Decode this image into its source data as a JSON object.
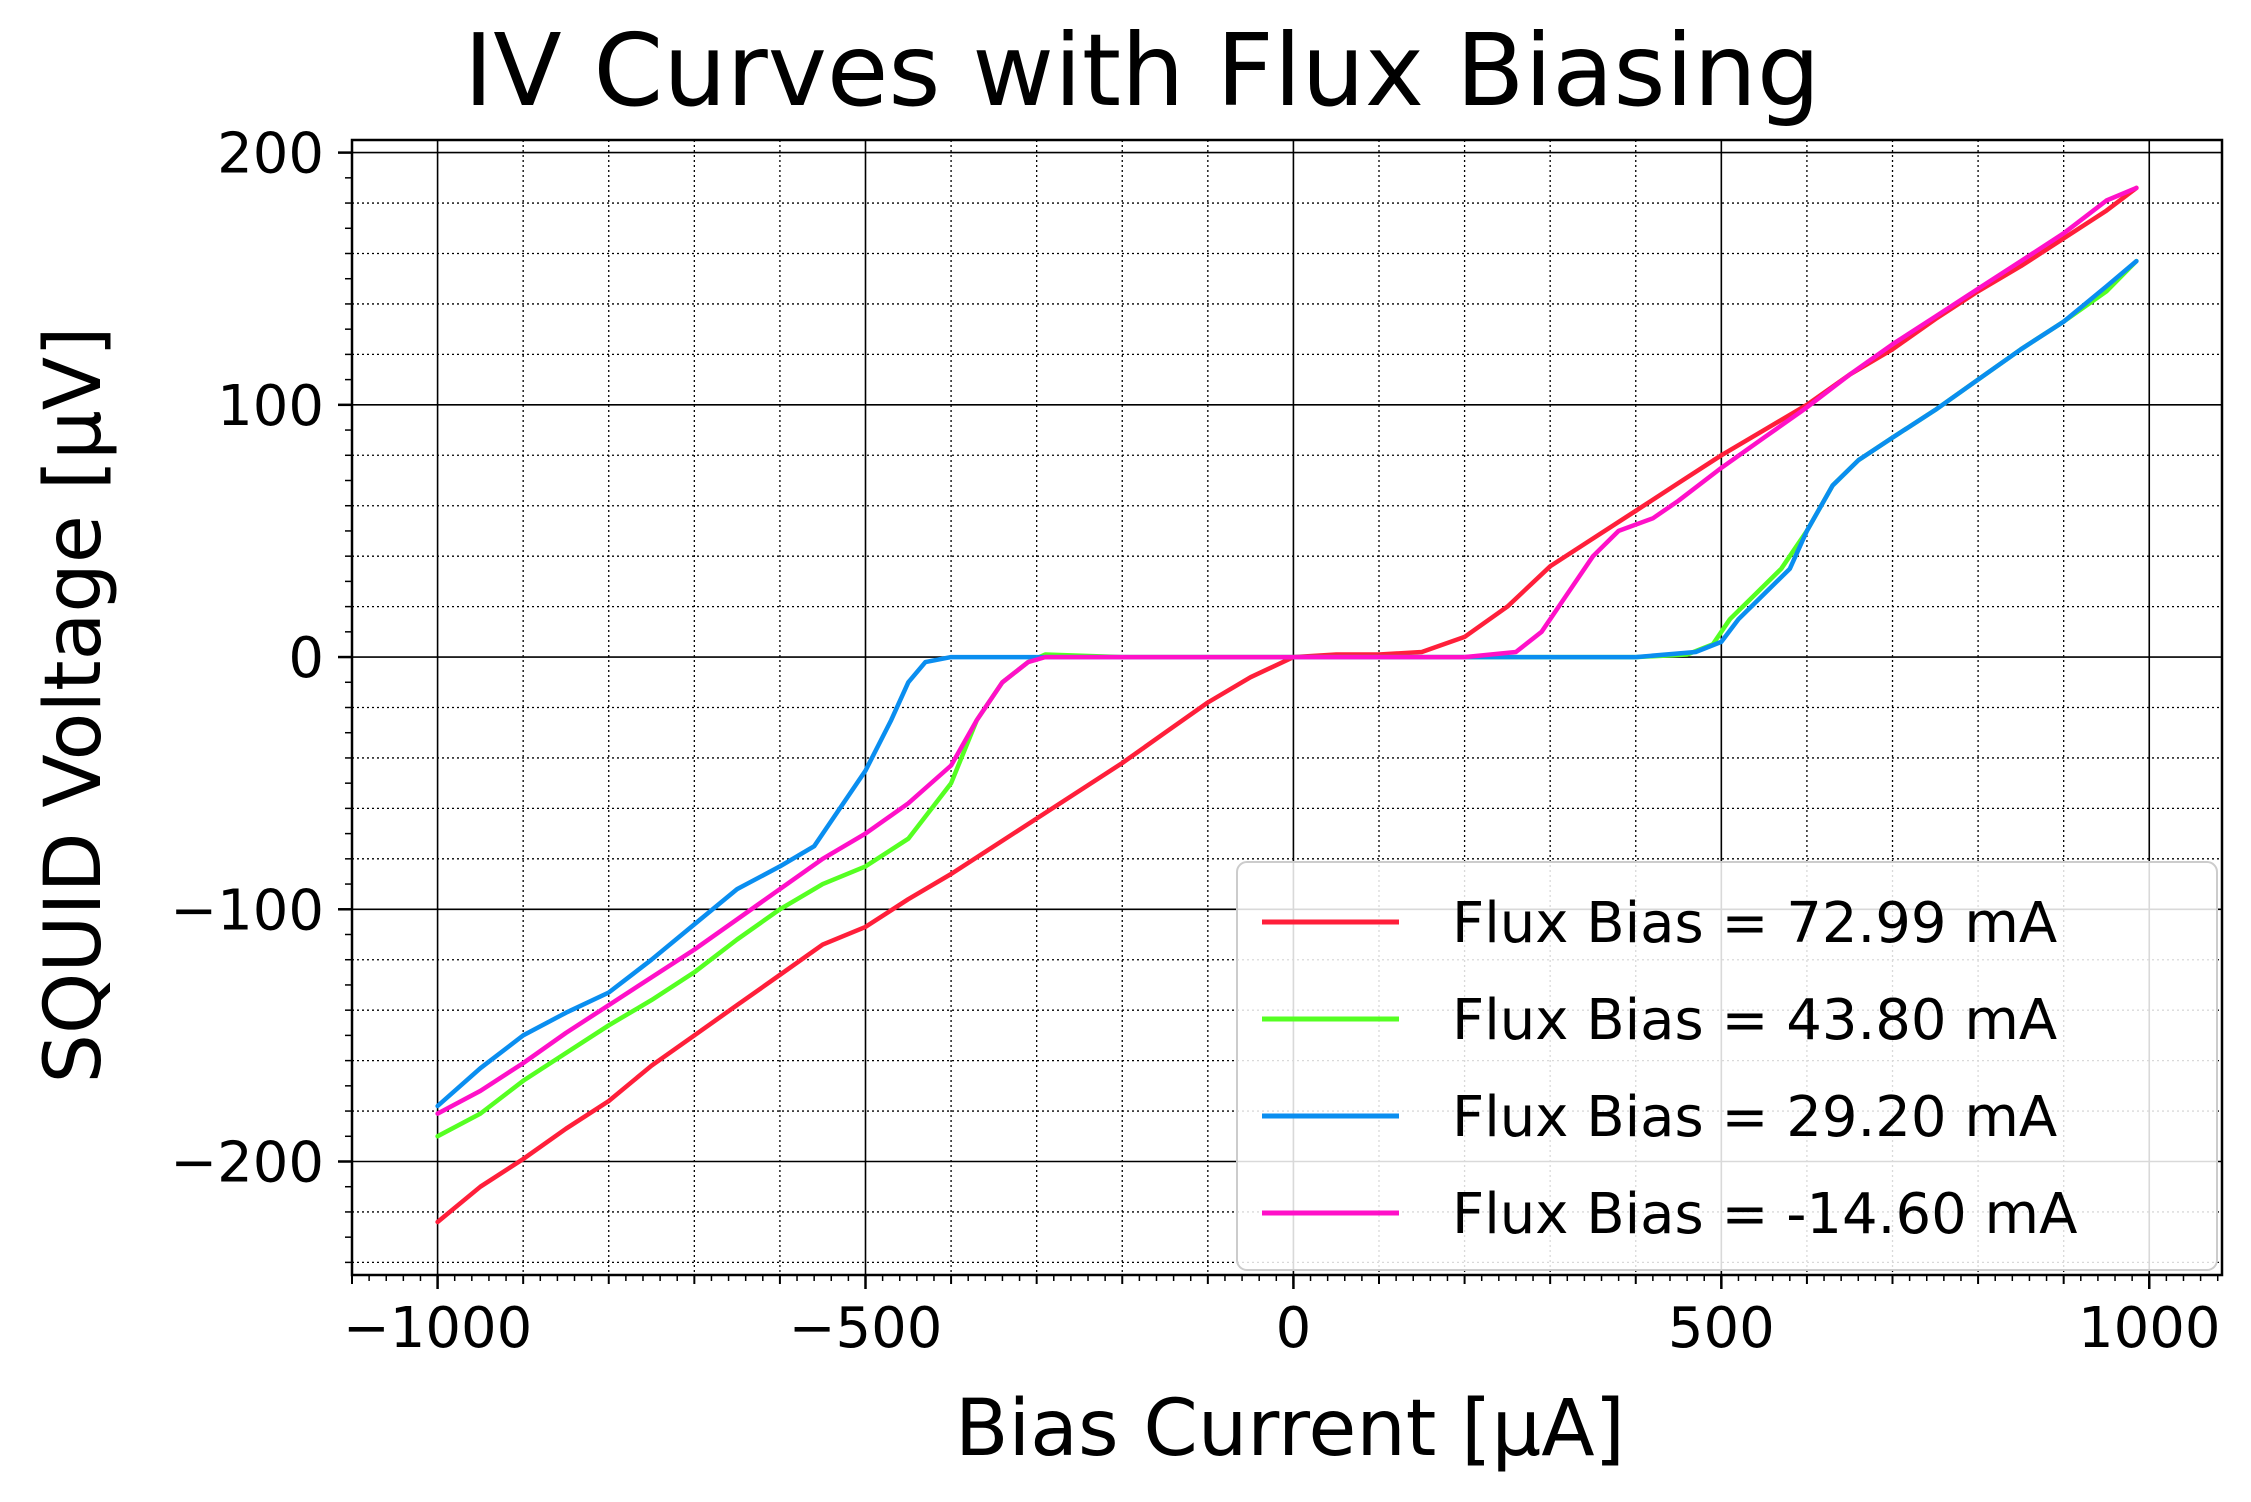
{
  "chart_data": {
    "type": "line",
    "title": "IV Curves with Flux Biasing",
    "xlabel": "Bias Current [μA]",
    "ylabel": "SQUID Voltage [μV]",
    "xlim": [
      -1100,
      1085
    ],
    "ylim": [
      -245,
      205
    ],
    "xticks": [
      -1000,
      -500,
      0,
      500,
      1000
    ],
    "xtick_labels": [
      "−1000",
      "−500",
      "0",
      "500",
      "1000"
    ],
    "yticks": [
      -200,
      -100,
      0,
      100,
      200
    ],
    "ytick_labels": [
      "−200",
      "−100",
      "0",
      "100",
      "200"
    ],
    "grid": "major solid, minor dotted",
    "legend_position": "lower-right",
    "series": [
      {
        "name": "Flux Bias = 72.99 mA",
        "color": "#ff1f3a",
        "points": [
          [
            -1000,
            -224
          ],
          [
            -950,
            -210
          ],
          [
            -900,
            -199
          ],
          [
            -850,
            -187
          ],
          [
            -800,
            -176
          ],
          [
            -750,
            -162
          ],
          [
            -700,
            -150
          ],
          [
            -650,
            -138
          ],
          [
            -600,
            -126
          ],
          [
            -550,
            -114
          ],
          [
            -500,
            -107
          ],
          [
            -450,
            -96
          ],
          [
            -400,
            -86
          ],
          [
            -350,
            -75
          ],
          [
            -300,
            -64
          ],
          [
            -250,
            -53
          ],
          [
            -200,
            -42
          ],
          [
            -150,
            -30
          ],
          [
            -100,
            -18
          ],
          [
            -50,
            -8
          ],
          [
            0,
            0
          ],
          [
            50,
            1
          ],
          [
            100,
            1
          ],
          [
            150,
            2
          ],
          [
            200,
            8
          ],
          [
            250,
            20
          ],
          [
            300,
            36
          ],
          [
            350,
            47
          ],
          [
            400,
            58
          ],
          [
            450,
            69
          ],
          [
            500,
            80
          ],
          [
            550,
            90
          ],
          [
            600,
            100
          ],
          [
            650,
            112
          ],
          [
            700,
            122
          ],
          [
            750,
            134
          ],
          [
            800,
            145
          ],
          [
            850,
            155
          ],
          [
            900,
            166
          ],
          [
            950,
            177
          ],
          [
            985,
            186
          ]
        ]
      },
      {
        "name": "Flux Bias = 43.80 mA",
        "color": "#55ff22",
        "points": [
          [
            -1000,
            -190
          ],
          [
            -950,
            -181
          ],
          [
            -900,
            -168
          ],
          [
            -850,
            -157
          ],
          [
            -800,
            -146
          ],
          [
            -750,
            -136
          ],
          [
            -700,
            -125
          ],
          [
            -650,
            -112
          ],
          [
            -600,
            -100
          ],
          [
            -550,
            -90
          ],
          [
            -500,
            -83
          ],
          [
            -450,
            -72
          ],
          [
            -400,
            -50
          ],
          [
            -370,
            -25
          ],
          [
            -340,
            -10
          ],
          [
            -310,
            -2
          ],
          [
            -290,
            1
          ],
          [
            -200,
            0
          ],
          [
            -100,
            0
          ],
          [
            0,
            0
          ],
          [
            100,
            0
          ],
          [
            200,
            0
          ],
          [
            300,
            0
          ],
          [
            400,
            0
          ],
          [
            460,
            1
          ],
          [
            490,
            5
          ],
          [
            510,
            15
          ],
          [
            540,
            25
          ],
          [
            570,
            35
          ],
          [
            600,
            50
          ],
          [
            630,
            68
          ],
          [
            660,
            78
          ],
          [
            700,
            87
          ],
          [
            750,
            98
          ],
          [
            800,
            110
          ],
          [
            850,
            122
          ],
          [
            900,
            133
          ],
          [
            950,
            145
          ],
          [
            985,
            157
          ]
        ]
      },
      {
        "name": "Flux Bias = 29.20 mA",
        "color": "#0a8ef0",
        "points": [
          [
            -1000,
            -178
          ],
          [
            -950,
            -163
          ],
          [
            -900,
            -150
          ],
          [
            -850,
            -141
          ],
          [
            -800,
            -133
          ],
          [
            -750,
            -120
          ],
          [
            -700,
            -106
          ],
          [
            -650,
            -92
          ],
          [
            -600,
            -83
          ],
          [
            -560,
            -75
          ],
          [
            -540,
            -65
          ],
          [
            -500,
            -45
          ],
          [
            -470,
            -25
          ],
          [
            -450,
            -10
          ],
          [
            -430,
            -2
          ],
          [
            -400,
            0
          ],
          [
            -300,
            0
          ],
          [
            -200,
            0
          ],
          [
            -100,
            0
          ],
          [
            0,
            0
          ],
          [
            100,
            0
          ],
          [
            200,
            0
          ],
          [
            300,
            0
          ],
          [
            400,
            0
          ],
          [
            470,
            2
          ],
          [
            500,
            6
          ],
          [
            520,
            15
          ],
          [
            550,
            25
          ],
          [
            580,
            35
          ],
          [
            600,
            50
          ],
          [
            630,
            68
          ],
          [
            660,
            78
          ],
          [
            700,
            87
          ],
          [
            750,
            98
          ],
          [
            800,
            110
          ],
          [
            850,
            122
          ],
          [
            900,
            133
          ],
          [
            950,
            147
          ],
          [
            985,
            157
          ]
        ]
      },
      {
        "name": "Flux Bias = -14.60 mA",
        "color": "#ff10c8",
        "points": [
          [
            -1000,
            -181
          ],
          [
            -950,
            -172
          ],
          [
            -900,
            -161
          ],
          [
            -850,
            -149
          ],
          [
            -800,
            -138
          ],
          [
            -750,
            -127
          ],
          [
            -700,
            -116
          ],
          [
            -650,
            -104
          ],
          [
            -600,
            -92
          ],
          [
            -550,
            -80
          ],
          [
            -500,
            -70
          ],
          [
            -450,
            -58
          ],
          [
            -400,
            -43
          ],
          [
            -370,
            -25
          ],
          [
            -340,
            -10
          ],
          [
            -310,
            -2
          ],
          [
            -290,
            0
          ],
          [
            -200,
            0
          ],
          [
            -100,
            0
          ],
          [
            0,
            0
          ],
          [
            100,
            0
          ],
          [
            200,
            0
          ],
          [
            260,
            2
          ],
          [
            290,
            10
          ],
          [
            320,
            25
          ],
          [
            350,
            40
          ],
          [
            380,
            50
          ],
          [
            420,
            55
          ],
          [
            450,
            62
          ],
          [
            500,
            75
          ],
          [
            550,
            87
          ],
          [
            600,
            99
          ],
          [
            650,
            112
          ],
          [
            700,
            124
          ],
          [
            750,
            135
          ],
          [
            800,
            146
          ],
          [
            850,
            157
          ],
          [
            900,
            168
          ],
          [
            950,
            181
          ],
          [
            985,
            186
          ]
        ]
      }
    ]
  }
}
